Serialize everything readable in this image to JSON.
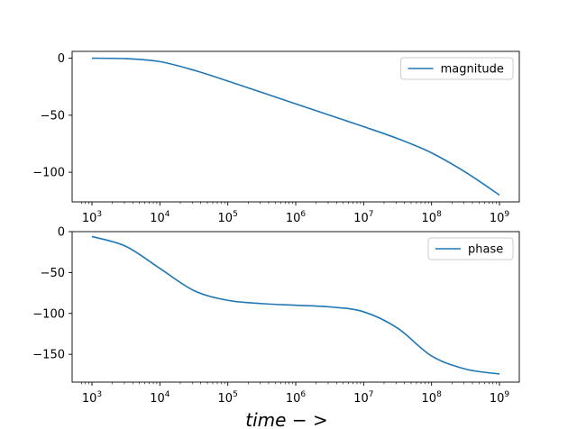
{
  "chart_data": [
    {
      "type": "line",
      "x_scale": "log",
      "xlim": [
        1000,
        1000000000
      ],
      "ylim": [
        -126,
        6
      ],
      "x_ticks": [
        1000,
        10000,
        100000,
        1000000,
        10000000,
        100000000,
        1000000000
      ],
      "x_tick_labels": [
        {
          "base": "10",
          "exp": "3"
        },
        {
          "base": "10",
          "exp": "4"
        },
        {
          "base": "10",
          "exp": "5"
        },
        {
          "base": "10",
          "exp": "6"
        },
        {
          "base": "10",
          "exp": "7"
        },
        {
          "base": "10",
          "exp": "8"
        },
        {
          "base": "10",
          "exp": "9"
        }
      ],
      "y_ticks": [
        0,
        -50,
        -100
      ],
      "y_tick_labels": [
        "0",
        "−50",
        "−100"
      ],
      "legend_position": "top-right",
      "grid": false,
      "series": [
        {
          "name": "magnitude",
          "color": "#1f77b4",
          "x": [
            1000,
            3162,
            10000,
            31623,
            100000,
            316228,
            1000000,
            3162278,
            10000000,
            31622777,
            100000000,
            316227766,
            1000000000
          ],
          "y": [
            0,
            -0.4,
            -3,
            -10.5,
            -20,
            -30,
            -40,
            -50,
            -60,
            -70.5,
            -83,
            -100,
            -120
          ]
        }
      ]
    },
    {
      "type": "line",
      "x_scale": "log",
      "xlim": [
        1000,
        1000000000
      ],
      "ylim": [
        -184,
        0
      ],
      "x_ticks": [
        1000,
        10000,
        100000,
        1000000,
        10000000,
        100000000,
        1000000000
      ],
      "x_tick_labels": [
        {
          "base": "10",
          "exp": "3"
        },
        {
          "base": "10",
          "exp": "4"
        },
        {
          "base": "10",
          "exp": "5"
        },
        {
          "base": "10",
          "exp": "6"
        },
        {
          "base": "10",
          "exp": "7"
        },
        {
          "base": "10",
          "exp": "8"
        },
        {
          "base": "10",
          "exp": "9"
        }
      ],
      "y_ticks": [
        0,
        -50,
        -100,
        -150
      ],
      "y_tick_labels": [
        "0",
        "−50",
        "−100",
        "−150"
      ],
      "xlabel": "time − >",
      "legend_position": "top-right",
      "grid": false,
      "series": [
        {
          "name": "phase",
          "color": "#1f77b4",
          "x": [
            1000,
            3162,
            10000,
            31623,
            100000,
            316228,
            1000000,
            3162278,
            10000000,
            31622777,
            100000000,
            316227766,
            1000000000
          ],
          "y": [
            -6,
            -18,
            -45,
            -72,
            -84,
            -88,
            -90,
            -92,
            -98,
            -118,
            -152,
            -168,
            -174
          ]
        }
      ]
    }
  ]
}
